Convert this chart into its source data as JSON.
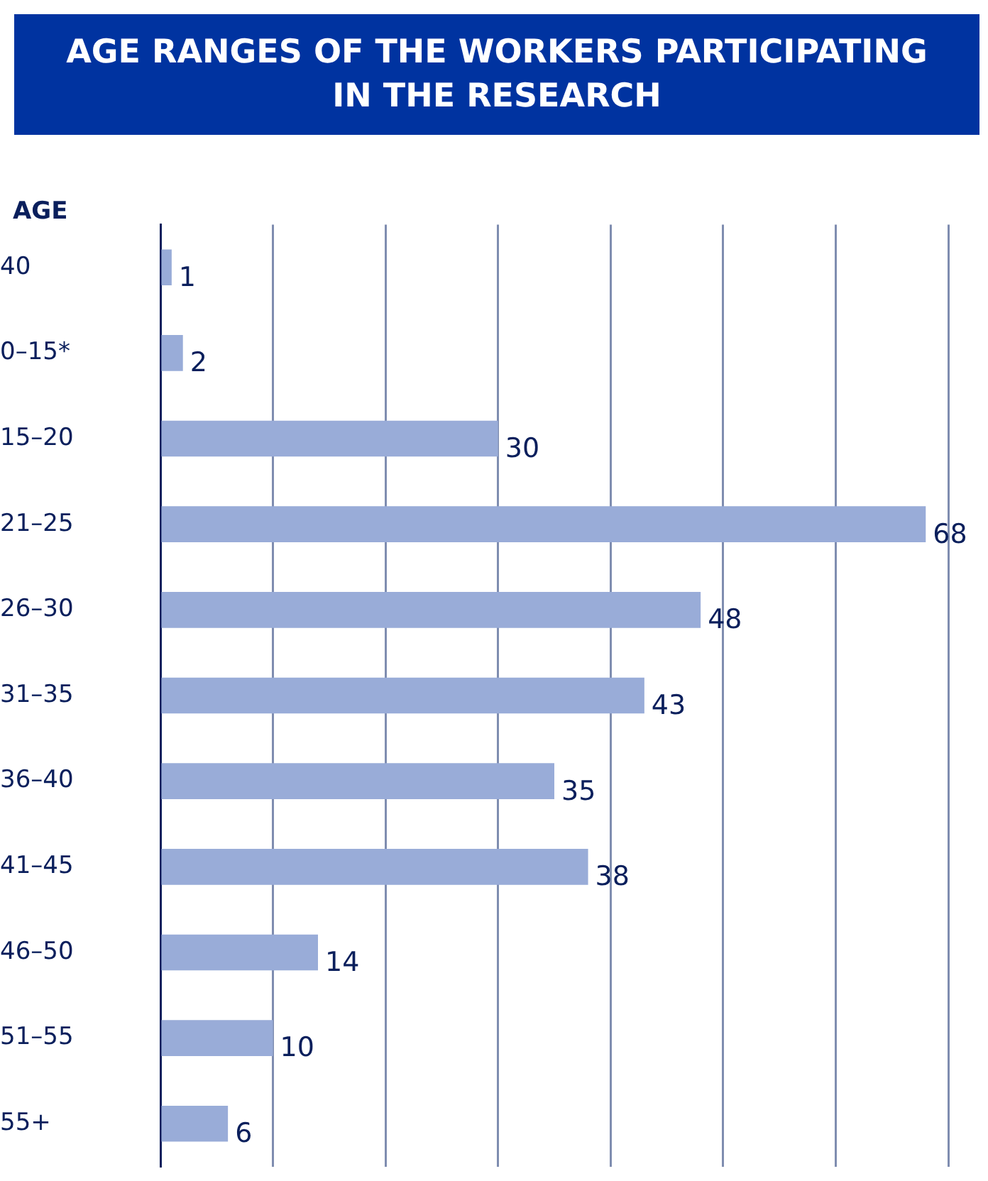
{
  "chart_data": {
    "type": "bar",
    "orientation": "horizontal",
    "title": "AGE RANGES OF THE WORKERS PARTICIPATING IN THE RESEARCH",
    "ylabel": "AGE",
    "categories": [
      "40",
      "0–15*",
      "15–20",
      "21–25",
      "26–30",
      "31–35",
      "36–40",
      "41–45",
      "46–50",
      "51–55",
      "55+"
    ],
    "values": [
      1,
      2,
      30,
      68,
      48,
      43,
      35,
      38,
      14,
      10,
      6
    ],
    "color": "#99acd8",
    "xlim": [
      0,
      70
    ],
    "xticks": [
      0,
      10,
      20,
      30,
      40,
      50,
      60,
      70
    ],
    "grid": "x",
    "tick_labels": "y",
    "data_labels": true,
    "legend": false
  }
}
